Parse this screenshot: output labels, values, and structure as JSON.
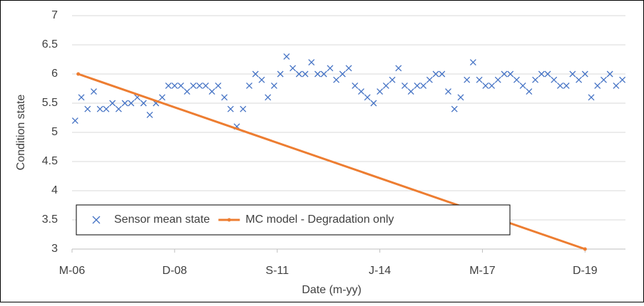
{
  "chart_data": {
    "type": "scatter",
    "x_label": "Date (m-yy)",
    "y_label": "Condition state",
    "xlim": [
      "2006-03",
      "2021-01"
    ],
    "xticks": [
      {
        "value": "2006-03",
        "label": "M-06"
      },
      {
        "value": "2008-12",
        "label": "D-08"
      },
      {
        "value": "2011-09",
        "label": "S-11"
      },
      {
        "value": "2014-06",
        "label": "J-14"
      },
      {
        "value": "2017-03",
        "label": "M-17"
      },
      {
        "value": "2019-12",
        "label": "D-19"
      }
    ],
    "ylim": [
      3,
      7
    ],
    "yticks": [
      3,
      3.5,
      4,
      4.5,
      5,
      5.5,
      6,
      6.5,
      7
    ],
    "grid": true,
    "legend": "bottom-left",
    "series": [
      {
        "name": "Sensor mean state",
        "color": "#4472c4",
        "kind": "markers",
        "x": [
          "2006-04",
          "2006-06",
          "2006-08",
          "2006-10",
          "2006-12",
          "2007-02",
          "2007-04",
          "2007-06",
          "2007-08",
          "2007-10",
          "2007-12",
          "2008-02",
          "2008-04",
          "2008-06",
          "2008-08",
          "2008-10",
          "2008-12",
          "2009-02",
          "2009-04",
          "2009-06",
          "2009-08",
          "2009-10",
          "2009-12",
          "2010-02",
          "2010-04",
          "2010-06",
          "2010-08",
          "2010-10",
          "2010-12",
          "2011-02",
          "2011-04",
          "2011-06",
          "2011-08",
          "2011-10",
          "2011-12",
          "2012-02",
          "2012-04",
          "2012-06",
          "2012-08",
          "2012-10",
          "2012-12",
          "2013-02",
          "2013-04",
          "2013-06",
          "2013-08",
          "2013-10",
          "2013-12",
          "2014-02",
          "2014-04",
          "2014-06",
          "2014-08",
          "2014-10",
          "2014-12",
          "2015-02",
          "2015-04",
          "2015-06",
          "2015-08",
          "2015-10",
          "2015-12",
          "2016-02",
          "2016-04",
          "2016-06",
          "2016-08",
          "2016-10",
          "2016-12",
          "2017-02",
          "2017-04",
          "2017-06",
          "2017-08",
          "2017-10",
          "2017-12",
          "2018-02",
          "2018-04",
          "2018-06",
          "2018-08",
          "2018-10",
          "2018-12",
          "2019-02",
          "2019-04",
          "2019-06",
          "2019-08",
          "2019-10",
          "2019-12",
          "2020-02",
          "2020-04",
          "2020-06",
          "2020-08",
          "2020-10",
          "2020-12"
        ],
        "values": [
          5.2,
          5.6,
          5.4,
          5.7,
          5.4,
          5.4,
          5.5,
          5.4,
          5.5,
          5.5,
          5.6,
          5.5,
          5.3,
          5.5,
          5.6,
          5.8,
          5.8,
          5.8,
          5.7,
          5.8,
          5.8,
          5.8,
          5.7,
          5.8,
          5.6,
          5.4,
          5.1,
          5.4,
          5.8,
          6.0,
          5.9,
          5.6,
          5.8,
          6.0,
          6.3,
          6.1,
          6.0,
          6.0,
          6.2,
          6.0,
          6.0,
          6.1,
          5.9,
          6.0,
          6.1,
          5.8,
          5.7,
          5.6,
          5.5,
          5.7,
          5.8,
          5.9,
          6.1,
          5.8,
          5.7,
          5.8,
          5.8,
          5.9,
          6.0,
          6.0,
          5.7,
          5.4,
          5.6,
          5.9,
          6.2,
          5.9,
          5.8,
          5.8,
          5.9,
          6.0,
          6.0,
          5.9,
          5.8,
          5.7,
          5.9,
          6.0,
          6.0,
          5.9,
          5.8,
          5.8,
          6.0,
          5.9,
          6.0,
          5.6,
          5.8,
          5.9,
          6.0,
          5.8,
          5.9
        ]
      },
      {
        "name": "MC model - Degradation only",
        "color": "#ed7d31",
        "kind": "line",
        "x": [
          "2006-05",
          "2019-12"
        ],
        "values": [
          6,
          3
        ]
      }
    ]
  }
}
